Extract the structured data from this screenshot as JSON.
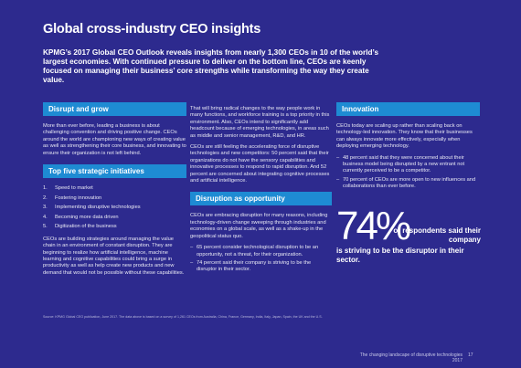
{
  "header": {
    "title": "Global cross-industry CEO insights",
    "intro": "KPMG’s 2017 Global CEO Outlook reveals insights from nearly 1,300 CEOs in 10 of the world’s largest economies. With continued pressure to deliver on the bottom line, CEOs are keenly focused on managing their business’ core strengths while transforming the way they create value."
  },
  "columns": [
    {
      "heading": "Disrupt and grow",
      "paragraph": "More than ever before, leading a business is about challenging convention and driving positive change. CEOs around the world are championing new ways of creating value as well as strengthening their core business, and innovating to ensure their organization is not left behind.",
      "list_heading": "Top five strategic initiatives",
      "list": [
        "Speed to market",
        "Fostering innovation",
        "Implementing disruptive technologies",
        "Becoming more data driven",
        "Digitization of the business"
      ],
      "paragraph2": "CEOs are building strategies around managing the value chain in an environment of constant disruption. They are beginning to realize how artificial intelligence, machine learning and cognitive capabilities could bring a surge in productivity as well as help create new products and new demand that would not be possible without these capabilities."
    },
    {
      "paragraphs": [
        "That will bring radical changes to the way people work in many functions, and workforce training is a top priority in this environment. Also, CEOs intend to significantly add headcount because of emerging technologies, in areas such as middle and senior management, R&D, and HR.",
        "CEOs are still feeling the accelerating force of disruptive technologies and new competitors: 50 percent said that their organizations do not have the sensory capabilities and innovative processes to respond to rapid disruption. And 52 percent are concerned about integrating cognitive processes and artificial intelligence."
      ],
      "heading": "Disruption as opportunity",
      "paragraph": "CEOs are embracing disruption for many reasons, including technology-driven change sweeping through industries and economies on a global scale, as well as a shake-up in the geopolitical status quo.",
      "bullets": [
        "65 percent consider technological disruption to be an opportunity, not a threat, for their organization.",
        "74 percent said their company is striving to be the disruptor in their sector."
      ]
    },
    {
      "heading": "Innovation",
      "paragraph": "CEOs today are scaling up rather than scaling back on technology-led innovation. They know that their businesses can always innovate more effectively, especially when deploying emerging technology.",
      "bullets": [
        "48 percent said that they were concerned about their business model being disrupted by a new entrant not currently perceived to be a competitor.",
        "70 percent of CEOs are more open to new influences and collaborations than ever before."
      ],
      "stat": {
        "figure": "74%",
        "text": "of respondents said their company",
        "text2": "is striving to be the disruptor in their sector."
      }
    }
  ],
  "footer": {
    "source": "Source: KPMG Global CEO publication, June 2017. The data above is based on a survey of 1,261 CEOs from Australia, China, France, Germany, India, Italy, Japan, Spain, the UK and the U.S.",
    "publication": "The changing landscape of disruptive technologies  2017",
    "page": "17"
  }
}
